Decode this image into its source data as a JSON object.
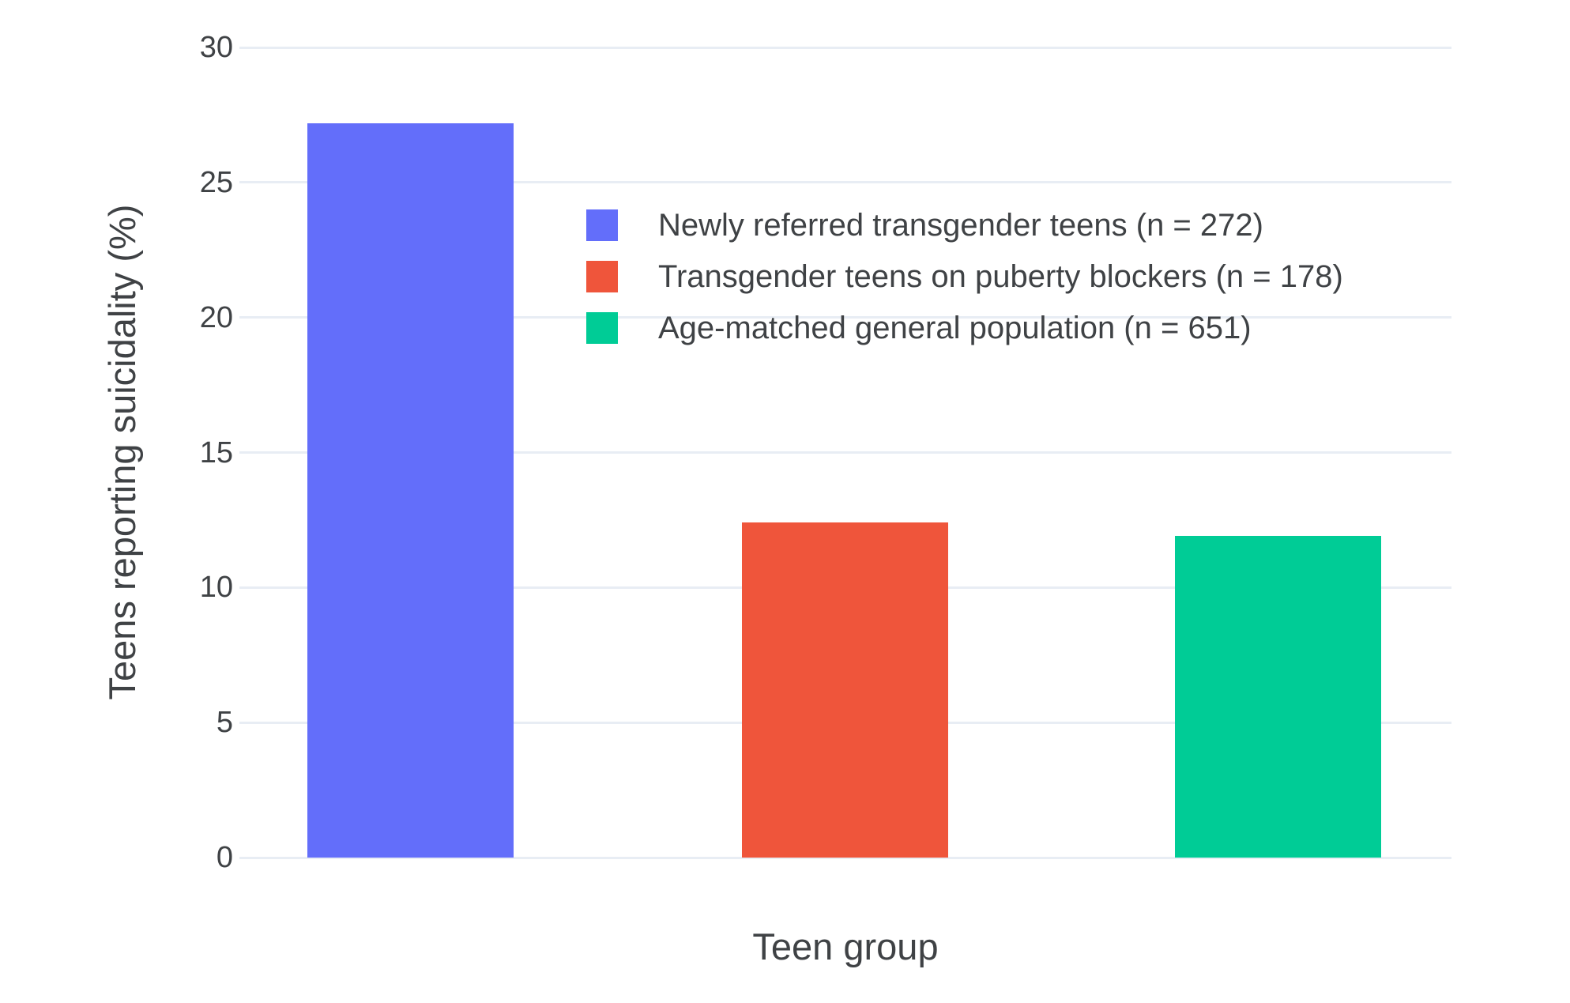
{
  "chart_data": {
    "type": "bar",
    "title": "",
    "xlabel": "Teen group",
    "ylabel": "Teens reporting suicidality (%)",
    "ylim": [
      0,
      30
    ],
    "yticks": [
      0,
      5,
      10,
      15,
      20,
      25,
      30
    ],
    "x_tick_labels": [],
    "grid": true,
    "background": "#ffffff",
    "gridline_color": "#e8edf4",
    "text_color": "#3f4245",
    "legend_position": "inside-top-center",
    "series": [
      {
        "name": "Newly referred transgender teens (n = 272)",
        "n": 272,
        "value": 27.2,
        "color": "#636EFA"
      },
      {
        "name": "Transgender teens on puberty blockers (n = 178)",
        "n": 178,
        "value": 12.4,
        "color": "#EF553B"
      },
      {
        "name": "Age-matched general population (n = 651)",
        "n": 651,
        "value": 11.9,
        "color": "#00CC96"
      }
    ]
  }
}
